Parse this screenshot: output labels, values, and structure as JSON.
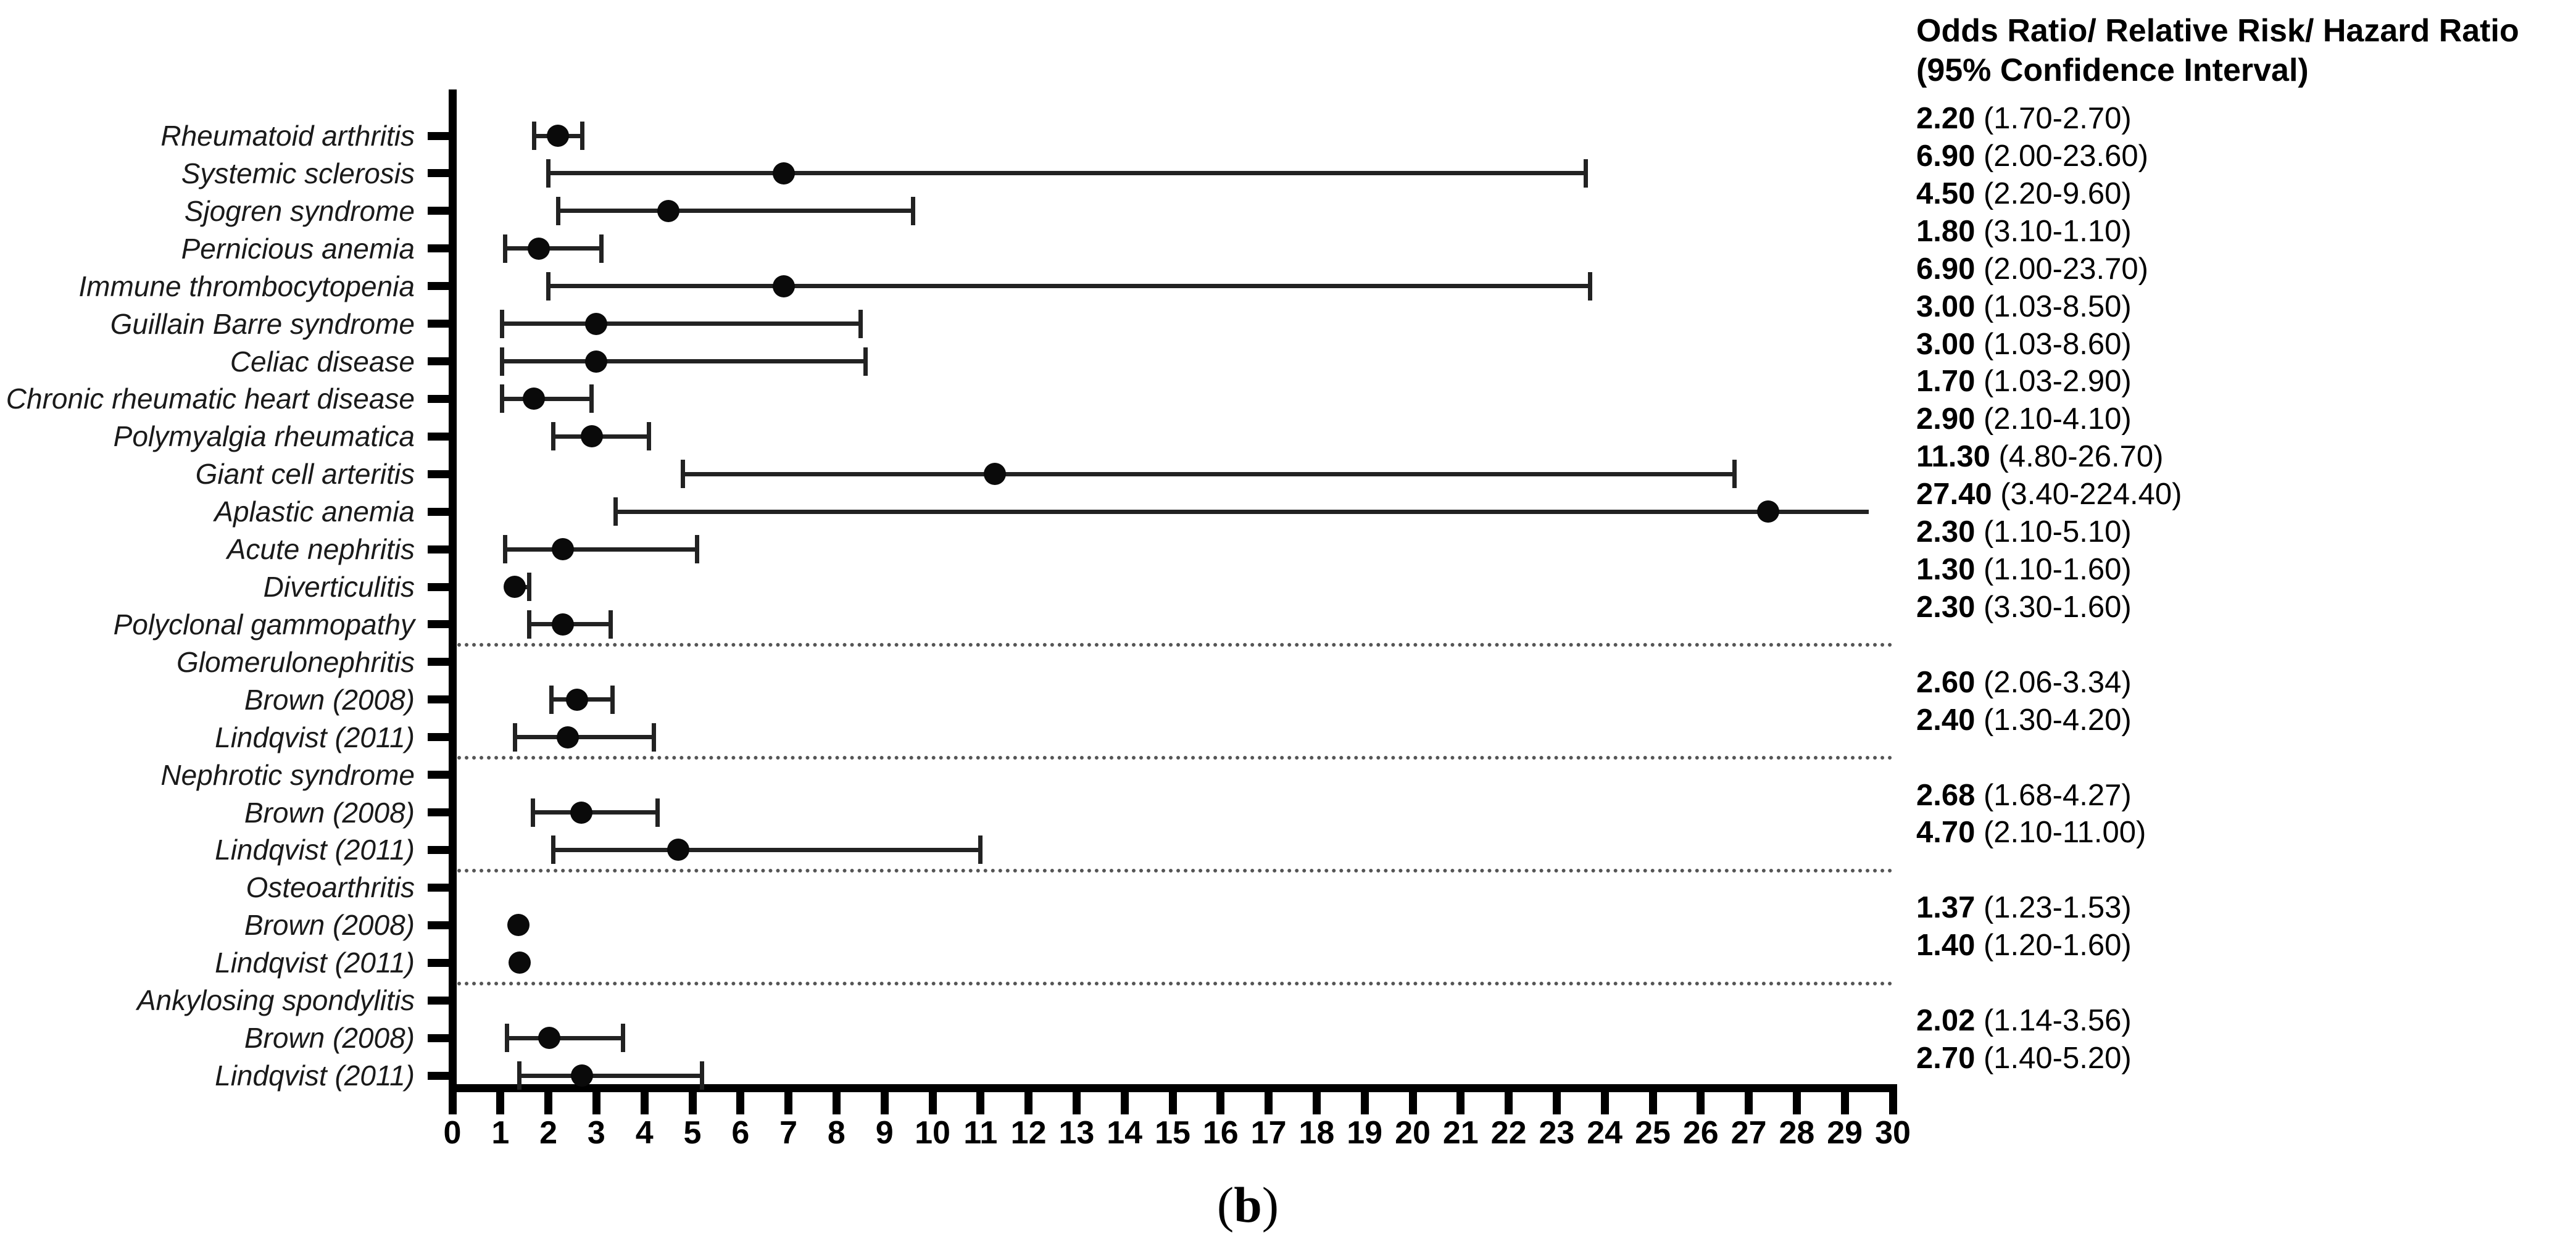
{
  "values_header": {
    "line1": "Odds Ratio/ Relative Risk/ Hazard Ratio",
    "line2": "(95% Confidence Interval)"
  },
  "caption": {
    "open": "(",
    "letter": "b",
    "close": ")"
  },
  "colors": {
    "background": "#ffffff",
    "ink": "#000000",
    "bar": "#222222",
    "separator": "#555555"
  },
  "chart_data": {
    "type": "forest",
    "title": "",
    "xlabel": "",
    "ylabel": "",
    "xlim": [
      0,
      30
    ],
    "x_ticks": [
      0,
      1,
      2,
      3,
      4,
      5,
      6,
      7,
      8,
      9,
      10,
      11,
      12,
      13,
      14,
      15,
      16,
      17,
      18,
      19,
      20,
      21,
      22,
      23,
      24,
      25,
      26,
      27,
      28,
      29,
      30
    ],
    "grid": false,
    "legend": "none",
    "rows": [
      {
        "label": "Rheumatoid arthritis",
        "header": false,
        "estimate": 2.2,
        "ci_low": 1.7,
        "ci_high": 2.7,
        "value_text": "2.20",
        "ci_text": "(1.70-2.70)"
      },
      {
        "label": "Systemic sclerosis",
        "header": false,
        "estimate": 6.9,
        "ci_low": 2.0,
        "ci_high": 23.6,
        "value_text": "6.90",
        "ci_text": "(2.00-23.60)"
      },
      {
        "label": "Sjogren syndrome",
        "header": false,
        "estimate": 4.5,
        "ci_low": 2.2,
        "ci_high": 9.6,
        "value_text": "4.50",
        "ci_text": "(2.20-9.60)"
      },
      {
        "label": "Pernicious anemia",
        "header": false,
        "estimate": 1.8,
        "ci_low": 1.1,
        "ci_high": 3.1,
        "value_text": "1.80",
        "ci_text": "(3.10-1.10)"
      },
      {
        "label": "Immune thrombocytopenia",
        "header": false,
        "estimate": 6.9,
        "ci_low": 2.0,
        "ci_high": 23.7,
        "value_text": "6.90",
        "ci_text": "(2.00-23.70)"
      },
      {
        "label": "Guillain Barre syndrome",
        "header": false,
        "estimate": 3.0,
        "ci_low": 1.03,
        "ci_high": 8.5,
        "value_text": "3.00",
        "ci_text": "(1.03-8.50)"
      },
      {
        "label": "Celiac disease",
        "header": false,
        "estimate": 3.0,
        "ci_low": 1.03,
        "ci_high": 8.6,
        "value_text": "3.00",
        "ci_text": "(1.03-8.60)"
      },
      {
        "label": "Chronic rheumatic heart disease",
        "header": false,
        "estimate": 1.7,
        "ci_low": 1.03,
        "ci_high": 2.9,
        "value_text": "1.70",
        "ci_text": "(1.03-2.90)"
      },
      {
        "label": "Polymyalgia rheumatica",
        "header": false,
        "estimate": 2.9,
        "ci_low": 2.1,
        "ci_high": 4.1,
        "value_text": "2.90",
        "ci_text": "(2.10-4.10)"
      },
      {
        "label": "Giant cell arteritis",
        "header": false,
        "estimate": 11.3,
        "ci_low": 4.8,
        "ci_high": 26.7,
        "value_text": "11.30",
        "ci_text": "(4.80-26.70)"
      },
      {
        "label": "Aplastic anemia",
        "header": false,
        "estimate": 27.4,
        "ci_low": 3.4,
        "ci_high": 224.4,
        "value_text": "27.40",
        "ci_text": "(3.40-224.40)"
      },
      {
        "label": "Acute nephritis",
        "header": false,
        "estimate": 2.3,
        "ci_low": 1.1,
        "ci_high": 5.1,
        "value_text": "2.30",
        "ci_text": "(1.10-5.10)"
      },
      {
        "label": "Diverticulitis",
        "header": false,
        "estimate": 1.3,
        "ci_low": 1.1,
        "ci_high": 1.6,
        "value_text": "1.30",
        "ci_text": "(1.10-1.60)"
      },
      {
        "label": "Polyclonal gammopathy",
        "header": false,
        "estimate": 2.3,
        "ci_low": 1.6,
        "ci_high": 3.3,
        "value_text": "2.30",
        "ci_text": "(3.30-1.60)"
      },
      {
        "label": "Glomerulonephritis",
        "header": true
      },
      {
        "label": "Brown (2008)",
        "header": false,
        "estimate": 2.6,
        "ci_low": 2.06,
        "ci_high": 3.34,
        "value_text": "2.60",
        "ci_text": "(2.06-3.34)"
      },
      {
        "label": "Lindqvist (2011)",
        "header": false,
        "estimate": 2.4,
        "ci_low": 1.3,
        "ci_high": 4.2,
        "value_text": "2.40",
        "ci_text": "(1.30-4.20)"
      },
      {
        "label": "Nephrotic syndrome",
        "header": true
      },
      {
        "label": "Brown (2008)",
        "header": false,
        "estimate": 2.68,
        "ci_low": 1.68,
        "ci_high": 4.27,
        "value_text": "2.68",
        "ci_text": "(1.68-4.27)"
      },
      {
        "label": "Lindqvist (2011)",
        "header": false,
        "estimate": 4.7,
        "ci_low": 2.1,
        "ci_high": 11.0,
        "value_text": "4.70",
        "ci_text": "(2.10-11.00)"
      },
      {
        "label": "Osteoarthritis",
        "header": true
      },
      {
        "label": "Brown (2008)",
        "header": false,
        "estimate": 1.37,
        "ci_low": 1.23,
        "ci_high": 1.53,
        "value_text": "1.37",
        "ci_text": "(1.23-1.53)"
      },
      {
        "label": "Lindqvist (2011)",
        "header": false,
        "estimate": 1.4,
        "ci_low": 1.2,
        "ci_high": 1.6,
        "value_text": "1.40",
        "ci_text": "(1.20-1.60)"
      },
      {
        "label": "Ankylosing spondylitis",
        "header": true
      },
      {
        "label": "Brown (2008)",
        "header": false,
        "estimate": 2.02,
        "ci_low": 1.14,
        "ci_high": 3.56,
        "value_text": "2.02",
        "ci_text": "(1.14-3.56)"
      },
      {
        "label": "Lindqvist (2011)",
        "header": false,
        "estimate": 2.7,
        "ci_low": 1.4,
        "ci_high": 5.2,
        "value_text": "2.70",
        "ci_text": "(1.40-5.20)"
      }
    ],
    "separators_after_row_index": [
      13,
      16,
      19,
      22
    ]
  }
}
